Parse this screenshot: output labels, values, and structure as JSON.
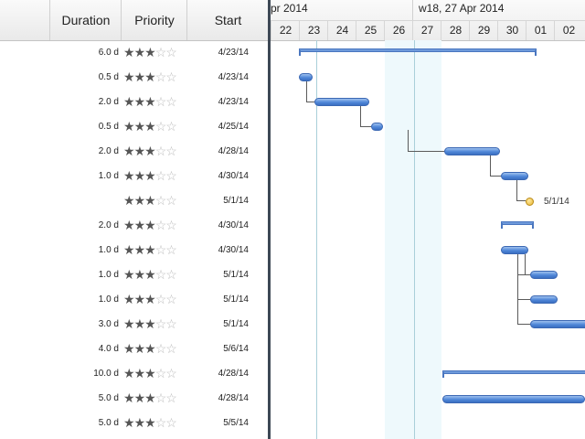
{
  "table": {
    "headers": {
      "duration": "Duration",
      "priority": "Priority",
      "start": "Start"
    },
    "rows": [
      {
        "duration": "6.0 d",
        "stars": 3,
        "start": "4/23/14"
      },
      {
        "duration": "0.5 d",
        "stars": 3,
        "start": "4/23/14"
      },
      {
        "duration": "2.0 d",
        "stars": 3,
        "start": "4/23/14"
      },
      {
        "duration": "0.5 d",
        "stars": 3,
        "start": "4/25/14"
      },
      {
        "duration": "2.0 d",
        "stars": 3,
        "start": "4/28/14"
      },
      {
        "duration": "1.0 d",
        "stars": 3,
        "start": "4/30/14"
      },
      {
        "duration": "",
        "stars": 3,
        "start": "5/1/14"
      },
      {
        "duration": "2.0 d",
        "stars": 3,
        "start": "4/30/14"
      },
      {
        "duration": "1.0 d",
        "stars": 3,
        "start": "4/30/14"
      },
      {
        "duration": "1.0 d",
        "stars": 3,
        "start": "5/1/14"
      },
      {
        "duration": "1.0 d",
        "stars": 3,
        "start": "5/1/14"
      },
      {
        "duration": "3.0 d",
        "stars": 3,
        "start": "5/1/14"
      },
      {
        "duration": "4.0 d",
        "stars": 3,
        "start": "5/6/14"
      },
      {
        "duration": "10.0 d",
        "stars": 3,
        "start": "4/28/14"
      },
      {
        "duration": "5.0 d",
        "stars": 3,
        "start": "4/28/14"
      },
      {
        "duration": "5.0 d",
        "stars": 3,
        "start": "5/5/14"
      }
    ]
  },
  "gantt": {
    "week_labels": [
      "pr 2014",
      "w18, 27 Apr 2014"
    ],
    "days": [
      "22",
      "23",
      "24",
      "25",
      "26",
      "27",
      "28",
      "29",
      "30",
      "01",
      "02"
    ],
    "milestone_label": "5/1/14",
    "colors": {
      "bar": "#4f87d8",
      "weekend": "#eef9fc",
      "splitter": "#3d4855",
      "milestone": "#e8b530"
    }
  }
}
